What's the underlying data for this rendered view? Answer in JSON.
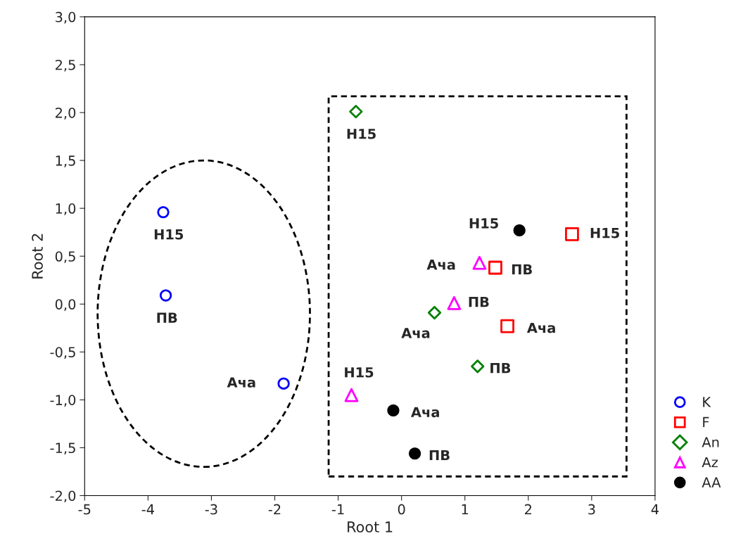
{
  "chart_data": {
    "type": "scatter",
    "xlabel": "Root 1",
    "ylabel": "Root 2",
    "xlim": [
      -5,
      4
    ],
    "ylim": [
      -2,
      3
    ],
    "xticks": [
      -5,
      -4,
      -3,
      -2,
      -1,
      0,
      1,
      2,
      3,
      4
    ],
    "yticks": [
      {
        "value": -2,
        "label": "-2,0"
      },
      {
        "value": -1.5,
        "label": "-1,5"
      },
      {
        "value": -1,
        "label": "-1,0"
      },
      {
        "value": -0.5,
        "label": "-0,5"
      },
      {
        "value": 0,
        "label": "0,0"
      },
      {
        "value": 0.5,
        "label": "0,5"
      },
      {
        "value": 1,
        "label": "1,0"
      },
      {
        "value": 1.5,
        "label": "1,5"
      },
      {
        "value": 2,
        "label": "2,0"
      },
      {
        "value": 2.5,
        "label": "2,5"
      },
      {
        "value": 3,
        "label": "3,0"
      }
    ],
    "grid": false,
    "legend": "bottom right",
    "series": [
      {
        "name": "K",
        "color": "#0000ff",
        "marker": "circle",
        "x": [
          -3.76,
          -3.72,
          -1.86
        ],
        "values": [
          0.96,
          0.09,
          -0.83
        ]
      },
      {
        "name": "F",
        "color": "#ff0000",
        "marker": "square",
        "x": [
          2.69,
          1.48,
          1.67
        ],
        "values": [
          0.73,
          0.38,
          -0.23
        ]
      },
      {
        "name": "An",
        "color": "#008000",
        "marker": "diamond",
        "x": [
          -0.72,
          0.52,
          1.2
        ],
        "values": [
          2.01,
          -0.09,
          -0.65
        ]
      },
      {
        "name": "Az",
        "color": "#ff00ff",
        "marker": "triangle",
        "x": [
          1.23,
          0.83,
          -0.79
        ],
        "values": [
          0.43,
          0.01,
          -0.95
        ]
      },
      {
        "name": "AA",
        "color": "#000000",
        "marker": "circle",
        "x": [
          1.86,
          -0.13,
          0.21
        ],
        "values": [
          0.77,
          -1.11,
          -1.56
        ]
      }
    ],
    "annotations": [
      {
        "text": "Н15",
        "x": -3.76,
        "y": 0.96
      },
      {
        "text": "ПВ",
        "x": -3.72,
        "y": 0.09
      },
      {
        "text": "Ача",
        "x": -1.86,
        "y": -0.83
      },
      {
        "text": "Н15",
        "x": 2.69,
        "y": 0.73
      },
      {
        "text": "ПВ",
        "x": 1.48,
        "y": 0.38
      },
      {
        "text": "Ача",
        "x": 1.67,
        "y": -0.23
      },
      {
        "text": "Н15",
        "x": -0.72,
        "y": 2.01
      },
      {
        "text": "Ача",
        "x": 0.52,
        "y": -0.09
      },
      {
        "text": "ПВ",
        "x": 1.2,
        "y": -0.65
      },
      {
        "text": "Ача",
        "x": 1.23,
        "y": 0.43
      },
      {
        "text": "ПВ",
        "x": 0.83,
        "y": 0.01
      },
      {
        "text": "Н15",
        "x": -0.79,
        "y": -0.95
      },
      {
        "text": "Н15",
        "x": 1.86,
        "y": 0.77
      },
      {
        "text": "Ача",
        "x": -0.13,
        "y": -1.11
      },
      {
        "text": "ПВ",
        "x": 0.21,
        "y": -1.56
      }
    ]
  }
}
